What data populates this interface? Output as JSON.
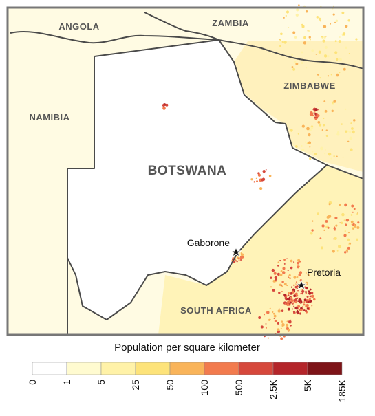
{
  "map": {
    "countries": [
      "ANGOLA",
      "ZAMBIA",
      "ZIMBABWE",
      "NAMIBIA",
      "BOTSWANA",
      "SOUTH AFRICA"
    ],
    "cities": [
      "Gaborone",
      "Pretoria"
    ]
  },
  "legend": {
    "title": "Population per square kilometer",
    "labels": [
      "0",
      "1",
      "5",
      "25",
      "50",
      "100",
      "500",
      "2.5K",
      "5K",
      "185K"
    ],
    "colors": [
      "#ffffff",
      "#fffbd0",
      "#fff2a8",
      "#fde37a",
      "#f9b45a",
      "#f27b4e",
      "#d6483c",
      "#b4252a",
      "#7e1418"
    ]
  }
}
